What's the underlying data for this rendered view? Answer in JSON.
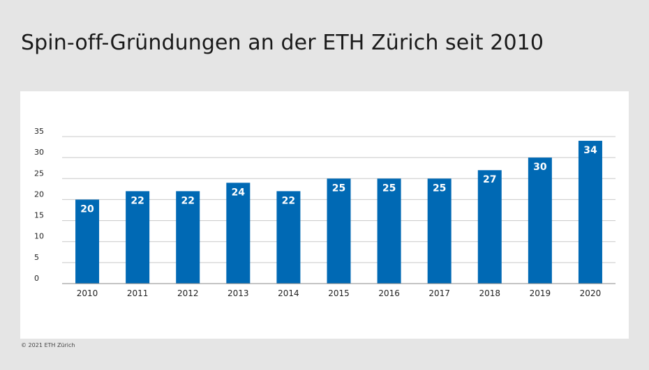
{
  "title": "Spin-off-Gründungen an der ETH Zürich seit 2010",
  "footer": "© 2021 ETH Zürich",
  "colors": {
    "bar": "#0069b4",
    "grid": "#c8c8c8",
    "axis": "#888888",
    "background": "#e5e5e5",
    "panel": "#ffffff"
  },
  "chart_data": {
    "type": "bar",
    "categories": [
      "2010",
      "2011",
      "2012",
      "2013",
      "2014",
      "2015",
      "2016",
      "2017",
      "2018",
      "2019",
      "2020"
    ],
    "values": [
      20,
      22,
      22,
      24,
      22,
      25,
      25,
      25,
      27,
      30,
      34
    ],
    "title": "Spin-off-Gründungen an der ETH Zürich seit 2010",
    "xlabel": "",
    "ylabel": "",
    "ylim": [
      0,
      35
    ],
    "yticks": [
      0,
      5,
      10,
      15,
      20,
      25,
      30,
      35
    ],
    "grid": true,
    "data_labels": true,
    "legend": "none"
  }
}
